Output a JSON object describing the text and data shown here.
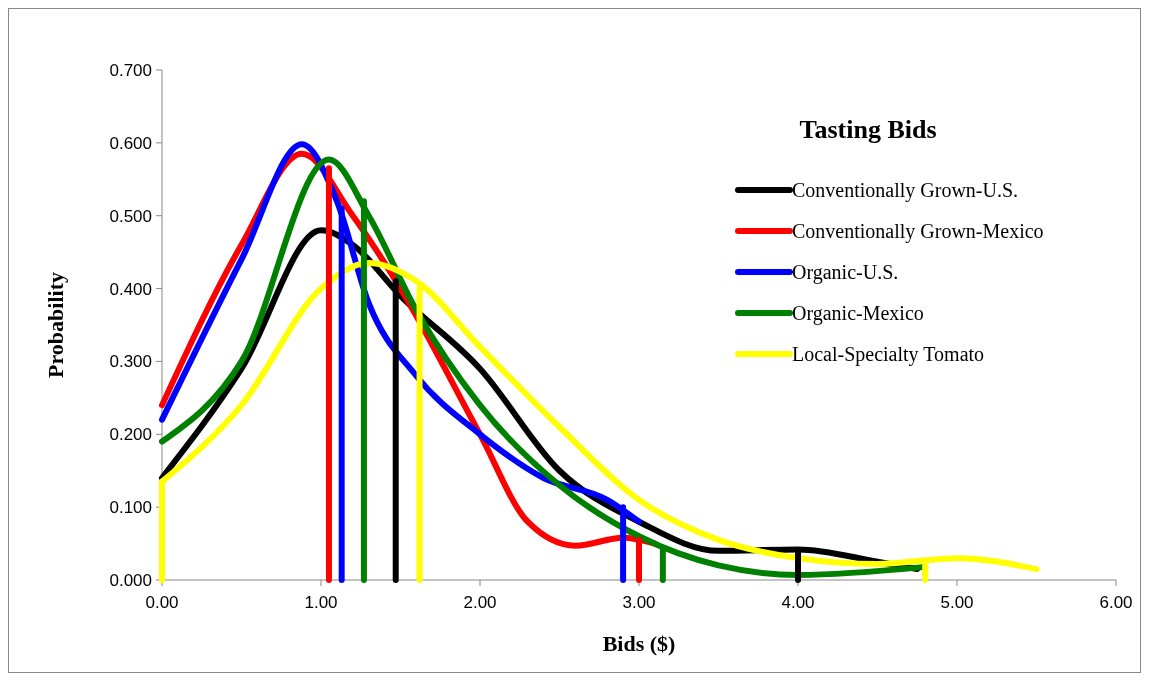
{
  "chart_data": {
    "type": "line",
    "xlabel": "Bids ($)",
    "ylabel": "Probability",
    "legend_title": "Tasting Bids",
    "legend": "top right",
    "grid": false,
    "line_style": "solid",
    "marker": "none",
    "xlim": [
      0,
      6
    ],
    "ylim": [
      0,
      0.7
    ],
    "xticks": [
      {
        "value": 0,
        "label": "0.00"
      },
      {
        "value": 1,
        "label": "1.00"
      },
      {
        "value": 2,
        "label": "2.00"
      },
      {
        "value": 3,
        "label": "3.00"
      },
      {
        "value": 4,
        "label": "4.00"
      },
      {
        "value": 5,
        "label": "5.00"
      },
      {
        "value": 6,
        "label": "6.00"
      }
    ],
    "yticks": [
      {
        "value": 0,
        "label": "0.000"
      },
      {
        "value": 0.1,
        "label": "0.100"
      },
      {
        "value": 0.2,
        "label": "0.200"
      },
      {
        "value": 0.3,
        "label": "0.300"
      },
      {
        "value": 0.4,
        "label": "0.400"
      },
      {
        "value": 0.5,
        "label": "0.500"
      },
      {
        "value": 0.6,
        "label": "0.600"
      },
      {
        "value": 0.7,
        "label": "0.700"
      }
    ],
    "series": [
      {
        "name": "Conventionally Grown-U.S.",
        "color": "#000000",
        "x": [
          0,
          0.5,
          1.0,
          1.2,
          1.5,
          2.0,
          2.5,
          3.0,
          3.5,
          4.0,
          4.5,
          4.75
        ],
        "values": [
          0.14,
          0.29,
          0.48,
          0.46,
          0.39,
          0.29,
          0.15,
          0.08,
          0.04,
          0.042,
          0.025,
          0.015
        ]
      },
      {
        "name": "Conventionally Grown-Mexico",
        "color": "#ff0000",
        "x": [
          0,
          0.5,
          0.88,
          1.2,
          1.5,
          2.0,
          2.3,
          2.6,
          2.9,
          3.1
        ],
        "values": [
          0.24,
          0.46,
          0.585,
          0.5,
          0.4,
          0.2,
          0.08,
          0.047,
          0.058,
          0.05
        ]
      },
      {
        "name": "Organic-U.S.",
        "color": "#0000ff",
        "x": [
          0,
          0.5,
          0.88,
          1.1,
          1.3,
          1.6,
          2.0,
          2.4,
          2.8,
          3.0
        ],
        "values": [
          0.22,
          0.44,
          0.598,
          0.52,
          0.38,
          0.28,
          0.2,
          0.14,
          0.11,
          0.08
        ]
      },
      {
        "name": "Organic-Mexico",
        "color": "#008000",
        "x": [
          0,
          0.5,
          1.05,
          1.3,
          1.6,
          2.0,
          2.5,
          3.0,
          3.5,
          4.0,
          4.8
        ],
        "values": [
          0.19,
          0.3,
          0.577,
          0.5,
          0.37,
          0.24,
          0.13,
          0.06,
          0.02,
          0.007,
          0.018
        ]
      },
      {
        "name": "Local-Specialty Tomato",
        "color": "#ffff00",
        "x": [
          0,
          0.5,
          1.0,
          1.3,
          1.6,
          2.0,
          2.5,
          3.0,
          3.5,
          4.0,
          4.5,
          5.0,
          5.5
        ],
        "values": [
          0.135,
          0.24,
          0.4,
          0.435,
          0.41,
          0.32,
          0.21,
          0.11,
          0.055,
          0.03,
          0.022,
          0.03,
          0.015
        ]
      },
      {
        "color": "#ff0000",
        "x": [
          1.05,
          1.05
        ],
        "values": [
          0,
          0.565
        ]
      },
      {
        "color": "#0000ff",
        "x": [
          1.13,
          1.13
        ],
        "values": [
          0,
          0.51
        ]
      },
      {
        "color": "#008000",
        "x": [
          1.27,
          1.27
        ],
        "values": [
          0,
          0.52
        ]
      },
      {
        "color": "#000000",
        "x": [
          1.47,
          1.47
        ],
        "values": [
          0,
          0.41
        ]
      },
      {
        "color": "#ffff00",
        "x": [
          1.62,
          1.62
        ],
        "values": [
          0,
          0.4
        ]
      },
      {
        "color": "#ffff00",
        "x": [
          0,
          0
        ],
        "values": [
          0,
          0.135
        ]
      },
      {
        "color": "#0000ff",
        "x": [
          2.9,
          2.9
        ],
        "values": [
          0,
          0.1
        ]
      },
      {
        "color": "#ff0000",
        "x": [
          3.0,
          3.0
        ],
        "values": [
          0,
          0.055
        ]
      },
      {
        "color": "#008000",
        "x": [
          3.15,
          3.15
        ],
        "values": [
          0,
          0.04
        ]
      },
      {
        "color": "#000000",
        "x": [
          4.0,
          4.0
        ],
        "values": [
          0,
          0.04
        ]
      },
      {
        "color": "#ffff00",
        "x": [
          4.8,
          4.8
        ],
        "values": [
          0,
          0.02
        ]
      }
    ]
  }
}
